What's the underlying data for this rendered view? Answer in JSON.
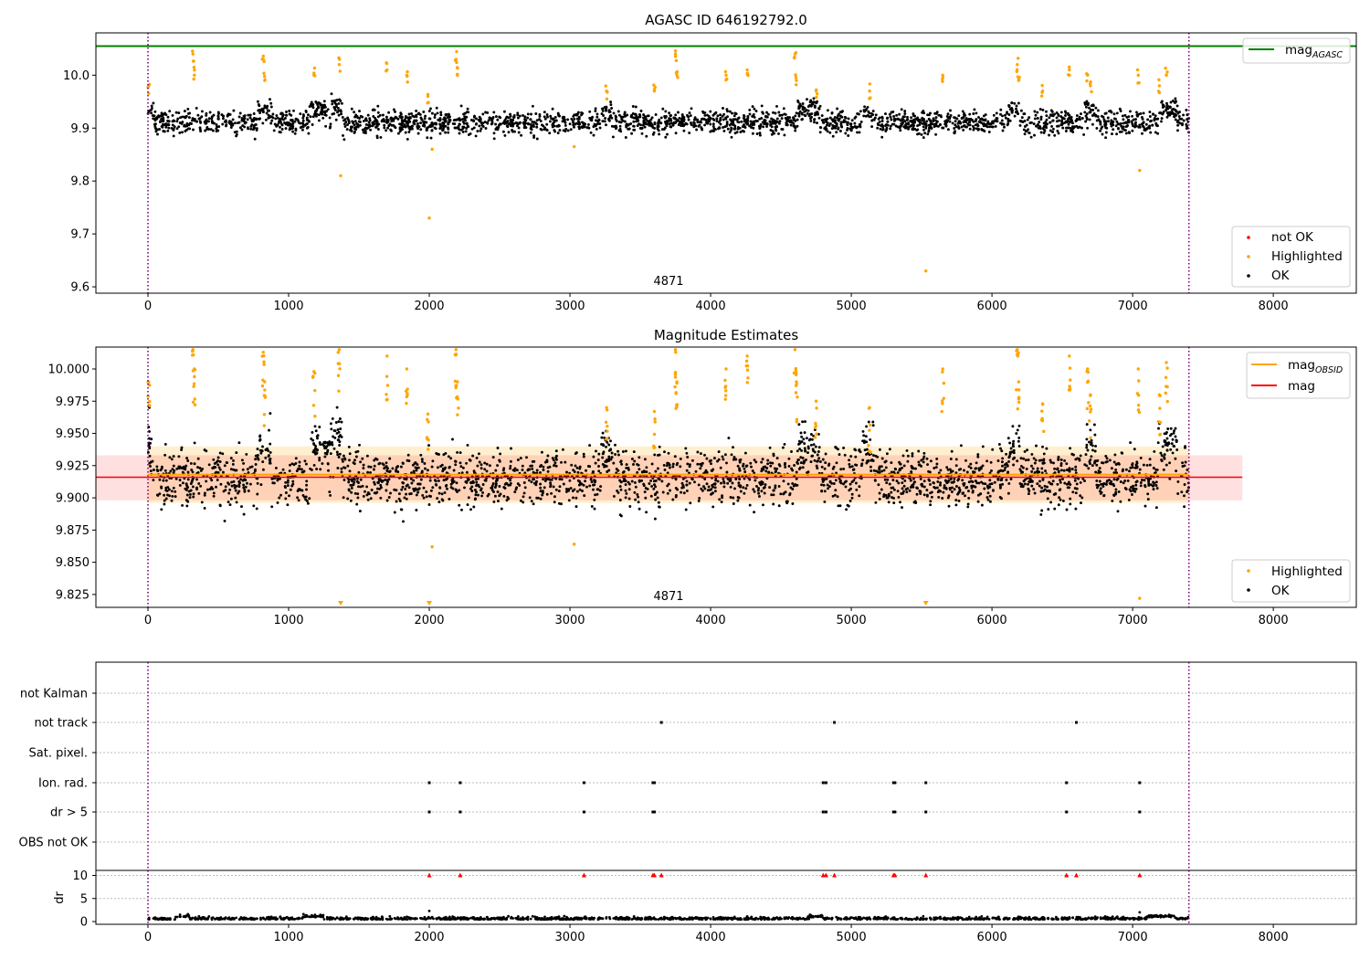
{
  "chart_data": [
    {
      "type": "scatter",
      "title": "AGASC ID 646192792.0",
      "xlim": [
        -370,
        8590
      ],
      "ylim": [
        9.588,
        10.08
      ],
      "x_ticks": [
        0,
        1000,
        2000,
        3000,
        4000,
        5000,
        6000,
        7000,
        8000
      ],
      "y_ticks": [
        9.6,
        9.7,
        9.8,
        9.9,
        10.0
      ],
      "vlines": [
        0,
        7400
      ],
      "annotation": "4871",
      "hline": {
        "value": 10.055,
        "xmax": 8590
      },
      "legend_line": {
        "label": "mag",
        "sub": "AGASC"
      },
      "legend_points": [
        "not OK",
        "Highlighted",
        "OK"
      ],
      "highlighted_points": [
        {
          "x": 5,
          "y": 9.98
        },
        {
          "x": 320,
          "y": 10.04
        },
        {
          "x": 330,
          "y": 10.0
        },
        {
          "x": 820,
          "y": 10.03
        },
        {
          "x": 830,
          "y": 9.99
        },
        {
          "x": 1180,
          "y": 10.0
        },
        {
          "x": 1360,
          "y": 10.02
        },
        {
          "x": 1370,
          "y": 9.81
        },
        {
          "x": 1700,
          "y": 10.01
        },
        {
          "x": 1840,
          "y": 10.0
        },
        {
          "x": 1990,
          "y": 9.96
        },
        {
          "x": 2000,
          "y": 9.73
        },
        {
          "x": 2020,
          "y": 9.86
        },
        {
          "x": 2190,
          "y": 10.03
        },
        {
          "x": 2200,
          "y": 10.0
        },
        {
          "x": 3030,
          "y": 9.865
        },
        {
          "x": 3260,
          "y": 9.97
        },
        {
          "x": 3600,
          "y": 9.97
        },
        {
          "x": 3750,
          "y": 10.04
        },
        {
          "x": 3760,
          "y": 10.0
        },
        {
          "x": 4110,
          "y": 10.0
        },
        {
          "x": 4260,
          "y": 10.01
        },
        {
          "x": 4600,
          "y": 10.04
        },
        {
          "x": 4610,
          "y": 9.99
        },
        {
          "x": 4750,
          "y": 9.97
        },
        {
          "x": 5130,
          "y": 9.97
        },
        {
          "x": 5530,
          "y": 9.63
        },
        {
          "x": 5650,
          "y": 10.0
        },
        {
          "x": 6180,
          "y": 10.02
        },
        {
          "x": 6190,
          "y": 9.99
        },
        {
          "x": 6360,
          "y": 9.97
        },
        {
          "x": 6550,
          "y": 10.01
        },
        {
          "x": 6680,
          "y": 10.0
        },
        {
          "x": 6700,
          "y": 9.98
        },
        {
          "x": 7040,
          "y": 10.0
        },
        {
          "x": 7050,
          "y": 9.82
        },
        {
          "x": 7190,
          "y": 9.98
        },
        {
          "x": 7240,
          "y": 10.0
        }
      ]
    },
    {
      "type": "scatter",
      "title": "Magnitude Estimates",
      "xlim": [
        -370,
        8590
      ],
      "ylim": [
        9.815,
        10.017
      ],
      "x_ticks": [
        0,
        1000,
        2000,
        3000,
        4000,
        5000,
        6000,
        7000,
        8000
      ],
      "y_ticks": [
        9.825,
        9.85,
        9.875,
        9.9,
        9.925,
        9.95,
        9.975,
        10.0
      ],
      "vlines": [
        0,
        7400
      ],
      "annotation": "4871",
      "mag_line": {
        "value": 9.916,
        "xmax": 7780,
        "band": [
          9.898,
          9.933
        ]
      },
      "mag_obsid": {
        "value": 9.918,
        "xmax": 7400,
        "band": [
          9.896,
          9.94
        ]
      },
      "legend_lines": [
        {
          "label": "mag",
          "sub": "OBSID",
          "color": "#ffa500"
        },
        {
          "label": "mag",
          "sub": "",
          "color": "#ff0000"
        }
      ],
      "legend_points": [
        "Highlighted",
        "OK"
      ],
      "highlighted_points": [
        {
          "x": 5,
          "y": 9.99
        },
        {
          "x": 320,
          "y": 10.015
        },
        {
          "x": 330,
          "y": 10.0
        },
        {
          "x": 820,
          "y": 10.013
        },
        {
          "x": 830,
          "y": 9.99
        },
        {
          "x": 1180,
          "y": 9.998
        },
        {
          "x": 1360,
          "y": 10.015
        },
        {
          "x": 1700,
          "y": 10.01
        },
        {
          "x": 1840,
          "y": 10.0
        },
        {
          "x": 1990,
          "y": 9.965
        },
        {
          "x": 2020,
          "y": 9.862
        },
        {
          "x": 2190,
          "y": 10.015
        },
        {
          "x": 2200,
          "y": 9.99
        },
        {
          "x": 3030,
          "y": 9.864
        },
        {
          "x": 3260,
          "y": 9.97
        },
        {
          "x": 3600,
          "y": 9.967
        },
        {
          "x": 3750,
          "y": 10.015
        },
        {
          "x": 3760,
          "y": 9.99
        },
        {
          "x": 4110,
          "y": 10.0
        },
        {
          "x": 4260,
          "y": 10.01
        },
        {
          "x": 4600,
          "y": 10.015
        },
        {
          "x": 4610,
          "y": 9.99
        },
        {
          "x": 4750,
          "y": 9.975
        },
        {
          "x": 5130,
          "y": 9.97
        },
        {
          "x": 5650,
          "y": 10.0
        },
        {
          "x": 6180,
          "y": 10.015
        },
        {
          "x": 6190,
          "y": 9.99
        },
        {
          "x": 6360,
          "y": 9.973
        },
        {
          "x": 6550,
          "y": 10.01
        },
        {
          "x": 6680,
          "y": 10.0
        },
        {
          "x": 6700,
          "y": 9.98
        },
        {
          "x": 7040,
          "y": 10.0
        },
        {
          "x": 7050,
          "y": 9.822
        },
        {
          "x": 7190,
          "y": 9.98
        },
        {
          "x": 7240,
          "y": 10.005
        }
      ],
      "clipped_markers_x": [
        1370,
        2000,
        5530
      ]
    },
    {
      "type": "scatter",
      "xlim": [
        -370,
        8590
      ],
      "x_ticks": [
        0,
        1000,
        2000,
        3000,
        4000,
        5000,
        6000,
        7000,
        8000
      ],
      "vlines": [
        0,
        7400
      ],
      "flag_rows": [
        "not Kalman",
        "not track",
        "Sat. pixel.",
        "Ion. rad.",
        "dr > 5",
        "OBS not OK"
      ],
      "flag_points": {
        "not track": [
          3650,
          4880,
          6600
        ],
        "Ion. rad.": [
          2000,
          2220,
          3100,
          3590,
          3600,
          4800,
          4820,
          5300,
          5310,
          5530,
          6530,
          7050
        ],
        "dr > 5": [
          2000,
          2220,
          3100,
          3590,
          3600,
          4800,
          4820,
          5300,
          5310,
          5530,
          6530,
          7050
        ]
      },
      "dr_ylabel": "dr",
      "dr_ylim": [
        0,
        10.5
      ],
      "dr_ticks": [
        0,
        5,
        10
      ],
      "dr_capped_x": [
        2000,
        2220,
        3100,
        3590,
        3600,
        3650,
        4800,
        4820,
        4880,
        5300,
        5310,
        5530,
        6530,
        6600,
        7050
      ],
      "dr_outliers": [
        {
          "x": 2000,
          "y": 2.3
        },
        {
          "x": 7050,
          "y": 2.0
        }
      ]
    }
  ]
}
